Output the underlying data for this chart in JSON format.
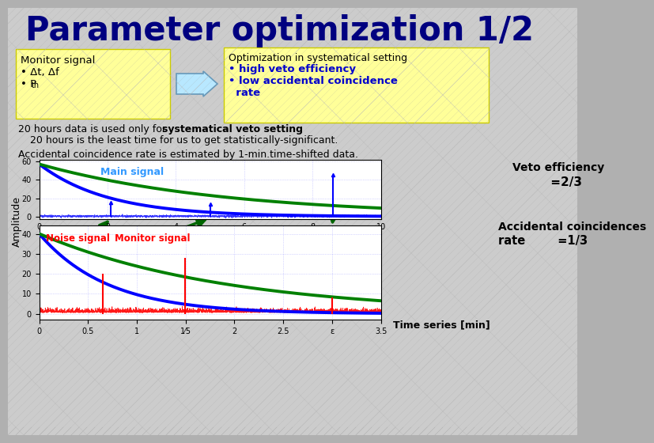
{
  "title": "Parameter optimization 1/2",
  "title_color": "#000080",
  "bg_color": "#b8b8b8",
  "box1_bg": "#ffff99",
  "box2_bg": "#ffff99",
  "arrow_color": "#aaddff",
  "line1_normal": "20 hours data is used only for ",
  "line1_bold": "systematical veto setting",
  "line1_end": ".",
  "line2": "   20 hours is the least time for us to get statistically-significant.",
  "line3": "Accidental coincidence rate is estimated by 1-min.time-shifted data.",
  "veto_label1": "Veto efficiency",
  "veto_label2": "     =2/3",
  "acc_label1": "Accidental coincidences",
  "acc_label2": "rate        =1/3",
  "time_series": "Time series [min]",
  "amplitude": "Amplitude",
  "main_signal_label": "Main signal",
  "noise_label": "Noise signal",
  "monitor_label": "Monitor signal"
}
